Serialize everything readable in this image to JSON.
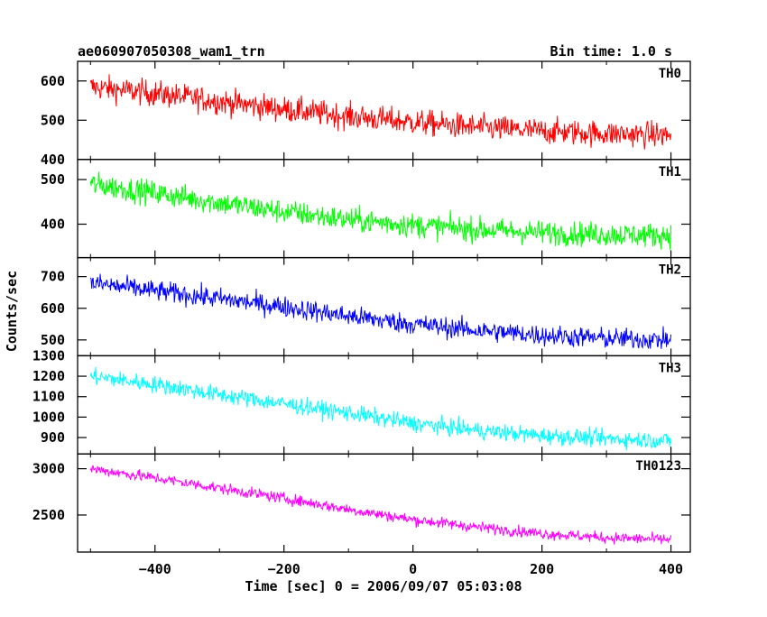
{
  "header": {
    "title": "ae060907050308_wam1_trn",
    "bin_time": "Bin time: 1.0 s"
  },
  "chart_data": {
    "type": "line",
    "title": "ae060907050308_wam1_trn",
    "subtitle": "Bin time: 1.0 s",
    "xlabel": "Time [sec] 0 = 2006/09/07 05:03:08",
    "ylabel": "Counts/sec",
    "xlim": [
      -520,
      430
    ],
    "x_ticks": [
      -400,
      -200,
      0,
      200,
      400
    ],
    "x_start": -500,
    "x_end": 400,
    "bin": 1.0,
    "panels": [
      {
        "name": "TH0",
        "color": "#ff0000",
        "ylim": [
          400,
          650
        ],
        "y_ticks": [
          400,
          500,
          600
        ],
        "trend": [
          [
            -500,
            585
          ],
          [
            -400,
            568
          ],
          [
            -300,
            548
          ],
          [
            -200,
            528
          ],
          [
            -100,
            510
          ],
          [
            0,
            495
          ],
          [
            100,
            482
          ],
          [
            200,
            472
          ],
          [
            300,
            466
          ],
          [
            400,
            462
          ]
        ],
        "noise": 30
      },
      {
        "name": "TH1",
        "color": "#00ff00",
        "ylim": [
          325,
          545
        ],
        "y_ticks": [
          400,
          500
        ],
        "trend": [
          [
            -500,
            490
          ],
          [
            -400,
            470
          ],
          [
            -300,
            448
          ],
          [
            -200,
            428
          ],
          [
            -100,
            410
          ],
          [
            0,
            398
          ],
          [
            100,
            388
          ],
          [
            200,
            381
          ],
          [
            300,
            377
          ],
          [
            400,
            375
          ]
        ],
        "noise": 25
      },
      {
        "name": "TH2",
        "color": "#0000ff",
        "ylim": [
          450,
          760
        ],
        "y_ticks": [
          500,
          600,
          700
        ],
        "trend": [
          [
            -500,
            680
          ],
          [
            -400,
            655
          ],
          [
            -300,
            630
          ],
          [
            -200,
            605
          ],
          [
            -100,
            575
          ],
          [
            0,
            550
          ],
          [
            100,
            530
          ],
          [
            200,
            515
          ],
          [
            300,
            505
          ],
          [
            400,
            500
          ]
        ],
        "noise": 30
      },
      {
        "name": "TH3",
        "color": "#00ffff",
        "ylim": [
          820,
          1300
        ],
        "y_ticks": [
          900,
          1000,
          1100,
          1200,
          1300
        ],
        "trend": [
          [
            -500,
            1200
          ],
          [
            -400,
            1160
          ],
          [
            -300,
            1110
          ],
          [
            -200,
            1065
          ],
          [
            -100,
            1020
          ],
          [
            0,
            970
          ],
          [
            100,
            935
          ],
          [
            200,
            910
          ],
          [
            300,
            895
          ],
          [
            400,
            885
          ]
        ],
        "noise": 38
      },
      {
        "name": "TH0123",
        "color": "#ff00ff",
        "ylim": [
          2100,
          3160
        ],
        "y_ticks": [
          2500,
          3000
        ],
        "trend": [
          [
            -500,
            3000
          ],
          [
            -400,
            2900
          ],
          [
            -300,
            2790
          ],
          [
            -200,
            2680
          ],
          [
            -100,
            2560
          ],
          [
            0,
            2450
          ],
          [
            100,
            2370
          ],
          [
            200,
            2300
          ],
          [
            300,
            2255
          ],
          [
            400,
            2235
          ]
        ],
        "noise": 55
      }
    ]
  }
}
